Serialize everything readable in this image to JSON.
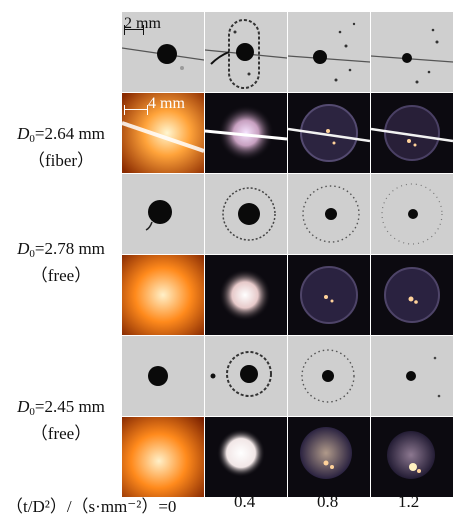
{
  "rows": [
    {
      "d_symbol": "D",
      "d_sub": "0",
      "d_value": "=2.64 mm",
      "condition": "（fiber）"
    },
    {
      "d_symbol": "D",
      "d_sub": "0",
      "d_value": "=2.78 mm",
      "condition": "（free）"
    },
    {
      "d_symbol": "D",
      "d_sub": "0",
      "d_value": "=2.45 mm",
      "condition": "（free）"
    }
  ],
  "scale_bars": {
    "shadow": "2 mm",
    "flame": "4 mm"
  },
  "axis": {
    "prefix": "（t/D²）/（s·mm⁻²）=0",
    "ticks": [
      "0.4",
      "0.8",
      "1.2"
    ]
  },
  "colors": {
    "shadow_bg": "#c9c9c9",
    "flame_bg": "#0c0a10",
    "droplet": "#0a0a0a",
    "ignition": "#ff8a1c"
  }
}
